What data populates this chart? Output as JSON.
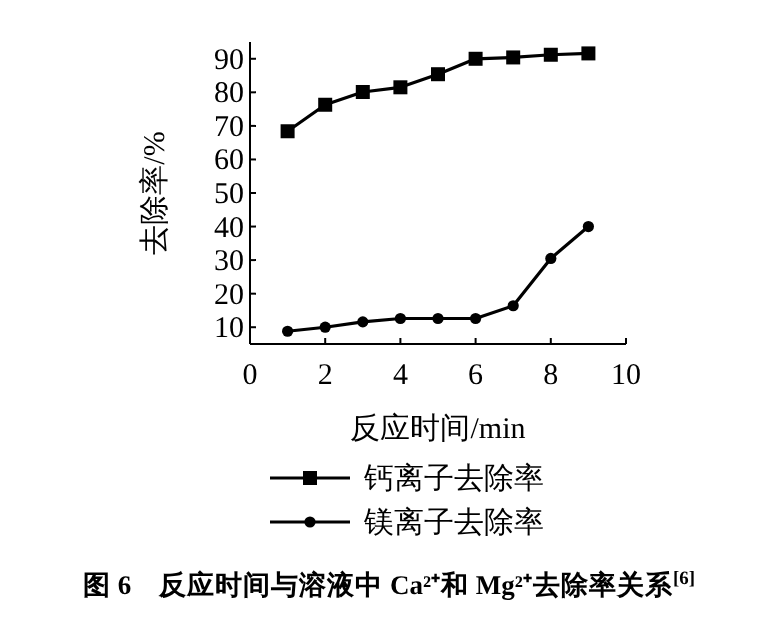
{
  "chart_data": {
    "type": "line",
    "title": "图 6　反应时间与溶液中 Ca²⁺和 Mg²⁺去除率关系$^{[6]}$",
    "xlabel": "反应时间/min",
    "ylabel": "去除率/%",
    "x": [
      1,
      2,
      3,
      4,
      5,
      6,
      7,
      8,
      9
    ],
    "series": [
      {
        "name": "钙离子去除率",
        "color": "#000000",
        "marker": "square",
        "values": [
          68.4,
          76.3,
          80.1,
          81.5,
          85.4,
          90,
          90.4,
          91.2,
          91.6
        ]
      },
      {
        "name": "镁离子去除率",
        "color": "#000000",
        "marker": "circle",
        "values": [
          8.8,
          10,
          11.6,
          12.6,
          12.6,
          12.6,
          16.4,
          30.5,
          40
        ]
      }
    ],
    "xlim": [
      0,
      10
    ],
    "ylim": [
      5,
      95
    ],
    "xticks": [
      0,
      2,
      4,
      6,
      8,
      10
    ],
    "yticks": [
      10,
      20,
      30,
      40,
      50,
      60,
      70,
      80,
      90
    ],
    "grid": false,
    "legend": "bottom",
    "line_style": "solid"
  }
}
